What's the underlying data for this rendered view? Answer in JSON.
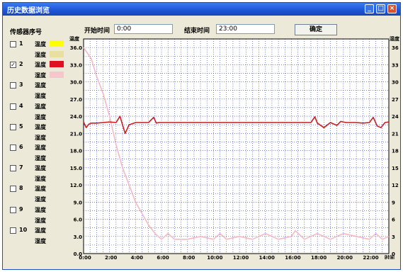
{
  "window": {
    "title": "历史数据浏览"
  },
  "toolbar": {
    "start_label": "开始时间",
    "start_value": "0:00",
    "end_label": "结束时间",
    "end_value": "23:00",
    "confirm_label": "确定"
  },
  "sensors": {
    "header": "传感器序号",
    "items": [
      {
        "number": "1",
        "checked": false,
        "temp_label": "温度",
        "hum_label": "湿度",
        "temp_color": "#ffff00",
        "hum_color": "#e8dfa0"
      },
      {
        "number": "2",
        "checked": true,
        "temp_label": "温度",
        "hum_label": "湿度",
        "temp_color": "#e01020",
        "hum_color": "#f7c5cc"
      },
      {
        "number": "3",
        "checked": false,
        "temp_label": "温度",
        "hum_label": "湿度",
        "temp_color": "",
        "hum_color": ""
      },
      {
        "number": "4",
        "checked": false,
        "temp_label": "温度",
        "hum_label": "湿度",
        "temp_color": "",
        "hum_color": ""
      },
      {
        "number": "5",
        "checked": false,
        "temp_label": "温度",
        "hum_label": "湿度",
        "temp_color": "",
        "hum_color": ""
      },
      {
        "number": "6",
        "checked": false,
        "temp_label": "温度",
        "hum_label": "湿度",
        "temp_color": "",
        "hum_color": ""
      },
      {
        "number": "7",
        "checked": false,
        "temp_label": "温度",
        "hum_label": "湿度",
        "temp_color": "",
        "hum_color": ""
      },
      {
        "number": "8",
        "checked": false,
        "temp_label": "温度",
        "hum_label": "湿度",
        "temp_color": "",
        "hum_color": ""
      },
      {
        "number": "9",
        "checked": false,
        "temp_label": "温度",
        "hum_label": "湿度",
        "temp_color": "",
        "hum_color": ""
      },
      {
        "number": "10",
        "checked": false,
        "temp_label": "温度",
        "hum_label": "湿度",
        "temp_color": "",
        "hum_color": ""
      }
    ]
  },
  "chart_data": {
    "type": "line",
    "left_axis_label": "温度",
    "right_axis_label": "湿度",
    "x_axis_label": "时间",
    "y_ticks": [
      "0.0",
      "3.0",
      "6.0",
      "9.0",
      "12.0",
      "15.0",
      "18.0",
      "21.0",
      "24.0",
      "27.0",
      "30.0",
      "33.0",
      "36.0"
    ],
    "right_ticks": [
      "0",
      "3",
      "6",
      "9",
      "12",
      "15",
      "18",
      "21",
      "24",
      "27",
      "30",
      "33",
      "36"
    ],
    "x_ticks": [
      "0:00",
      "2:00",
      "4:00",
      "6:00",
      "8:00",
      "10:00",
      "12:00",
      "14:00",
      "16:00",
      "18:00",
      "20:00",
      "22:00"
    ],
    "xlim": [
      0,
      23.5
    ],
    "ylim": [
      0,
      37.5
    ],
    "grid": true,
    "series": [
      {
        "name": "温度",
        "color": "#c81e1e",
        "x": [
          0,
          0.2,
          0.4,
          0.6,
          1.0,
          1.5,
          2.0,
          2.5,
          2.8,
          3.0,
          3.2,
          3.5,
          4.0,
          5.0,
          5.4,
          5.6,
          5.8,
          6.5,
          8.0,
          10.0,
          12.0,
          14.0,
          16.0,
          17.5,
          17.8,
          18.0,
          18.5,
          19.0,
          19.5,
          19.8,
          20.2,
          21.0,
          21.5,
          22.0,
          22.3,
          22.6,
          22.9,
          23.2,
          23.5
        ],
        "y": [
          23.0,
          22.0,
          22.6,
          22.8,
          22.8,
          22.9,
          23.0,
          22.9,
          24.0,
          22.5,
          21.0,
          22.5,
          22.9,
          22.9,
          23.8,
          22.8,
          22.9,
          22.9,
          22.9,
          22.9,
          22.9,
          22.9,
          22.9,
          22.9,
          23.9,
          22.8,
          22.0,
          22.9,
          22.4,
          23.1,
          22.9,
          22.9,
          22.8,
          22.9,
          23.8,
          22.3,
          22.0,
          22.9,
          23.0
        ]
      },
      {
        "name": "湿度",
        "color": "#f5b8c4",
        "x": [
          0,
          0.3,
          0.6,
          1.0,
          1.5,
          2.0,
          2.5,
          3.0,
          3.5,
          4.0,
          4.5,
          5.0,
          5.5,
          6.0,
          6.5,
          7.0,
          8.0,
          9.0,
          10.0,
          10.5,
          11.0,
          12.0,
          13.0,
          14.0,
          15.0,
          16.0,
          16.3,
          17.0,
          18.0,
          19.0,
          20.0,
          21.0,
          22.0,
          22.5,
          23.0,
          23.5
        ],
        "y": [
          36.0,
          35.0,
          34.0,
          31.0,
          28.0,
          24.0,
          19.0,
          15.0,
          12.0,
          9.0,
          7.0,
          5.0,
          3.5,
          2.5,
          3.5,
          2.5,
          2.5,
          3.0,
          2.5,
          3.5,
          2.5,
          3.0,
          2.5,
          3.5,
          2.5,
          3.0,
          4.0,
          2.5,
          3.5,
          2.5,
          3.5,
          3.0,
          2.5,
          3.5,
          2.5,
          3.0
        ]
      }
    ]
  }
}
